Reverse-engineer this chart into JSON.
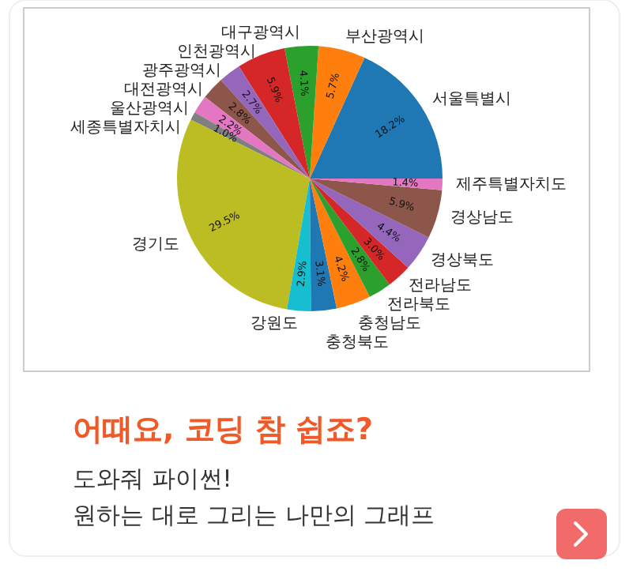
{
  "chart_data": {
    "type": "pie",
    "title": "어때요, 코딩 참 쉽죠?",
    "subtitle": "도와줘 파이썬!",
    "annotations": [
      "원하는 대로 그리는 나만의 그래프"
    ],
    "categories": [
      "서울특별시",
      "부산광역시",
      "대구광역시",
      "인천광역시",
      "광주광역시",
      "대전광역시",
      "울산광역시",
      "세종특별자치시",
      "경기도",
      "강원도",
      "충청북도",
      "충청남도",
      "전라북도",
      "전라남도",
      "경상북도",
      "경상남도",
      "제주특별자치도"
    ],
    "values": [
      18.2,
      5.7,
      4.1,
      5.9,
      2.7,
      2.8,
      2.2,
      1.0,
      29.5,
      2.9,
      3.1,
      4.2,
      2.8,
      3.0,
      4.4,
      5.9,
      1.4
    ],
    "value_labels": [
      "18.2%",
      "5.7%",
      "4.1%",
      "5.9%",
      "2.7%",
      "2.8%",
      "2.2%",
      "1.0%",
      "29.5%",
      "2.9%",
      "3.1%",
      "4.2%",
      "2.8%",
      "3.0%",
      "4.4%",
      "5.9%",
      "1.4%"
    ],
    "colors": [
      "#1f77b4",
      "#ff7f0e",
      "#2ca02c",
      "#d62728",
      "#9467bd",
      "#8c564b",
      "#e377c2",
      "#7f7f7f",
      "#bcbd22",
      "#17becf",
      "#1f77b4",
      "#ff7f0e",
      "#2ca02c",
      "#d62728",
      "#9467bd",
      "#8c564b",
      "#e377c2"
    ]
  }
}
